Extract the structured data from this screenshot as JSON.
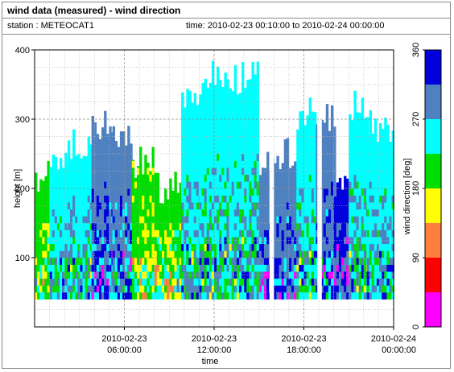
{
  "header": {
    "title": "wind data (measured) - wind direction",
    "station": "station : METEOCAT1",
    "time_range": "time: 2010-02-23 00:10:00 to 2010-02-24 00:00:00"
  },
  "chart_data": {
    "type": "heatmap",
    "xlabel": "time",
    "ylabel": "height [m]",
    "x_ticks": [
      {
        "hour": 6,
        "line1": "2010-02-23",
        "line2": "06:00:00"
      },
      {
        "hour": 12,
        "line1": "2010-02-23",
        "line2": "12:00:00"
      },
      {
        "hour": 18,
        "line1": "2010-02-23",
        "line2": "18:00:00"
      },
      {
        "hour": 24,
        "line1": "2010-02-24",
        "line2": "00:00:00"
      }
    ],
    "xlim_hours": [
      0,
      24
    ],
    "y_ticks": [
      "100",
      "200",
      "300",
      "400"
    ],
    "ylim": [
      0,
      400
    ],
    "grid": true,
    "colorbar": {
      "label": "wind direction [deg]",
      "ticks": [
        "0",
        "90",
        "180",
        "270",
        "360"
      ],
      "range": [
        0,
        360
      ],
      "bands": [
        {
          "from": 0,
          "to": 45,
          "color": "#ff00ff"
        },
        {
          "from": 45,
          "to": 90,
          "color": "#ff0000"
        },
        {
          "from": 90,
          "to": 135,
          "color": "#ff7f3f"
        },
        {
          "from": 135,
          "to": 180,
          "color": "#ffff00"
        },
        {
          "from": 180,
          "to": 225,
          "color": "#00dd00"
        },
        {
          "from": 225,
          "to": 270,
          "color": "#00ffff"
        },
        {
          "from": 270,
          "to": 315,
          "color": "#4f81c0"
        },
        {
          "from": 315,
          "to": 360,
          "color": "#0000dd"
        }
      ]
    },
    "segments": [
      {
        "t0": 0.0,
        "t1": 1.0,
        "top": 215,
        "dir": 195
      },
      {
        "t0": 1.0,
        "t1": 2.2,
        "top": 240,
        "dir": 250
      },
      {
        "t0": 2.2,
        "t1": 3.8,
        "top": 265,
        "dir": 255
      },
      {
        "t0": 3.8,
        "t1": 5.2,
        "top": 290,
        "dir": 300
      },
      {
        "t0": 5.2,
        "t1": 6.5,
        "top": 270,
        "dir": 295
      },
      {
        "t0": 6.5,
        "t1": 8.0,
        "top": 240,
        "dir": 190
      },
      {
        "t0": 8.0,
        "t1": 9.8,
        "top": 200,
        "dir": 200
      },
      {
        "t0": 9.8,
        "t1": 11.0,
        "top": 330,
        "dir": 255
      },
      {
        "t0": 11.0,
        "t1": 13.0,
        "top": 360,
        "dir": 250
      },
      {
        "t0": 13.0,
        "t1": 15.0,
        "top": 360,
        "dir": 250
      },
      {
        "t0": 15.0,
        "t1": 16.5,
        "top": 230,
        "dir": 295
      },
      {
        "t0": 16.5,
        "t1": 17.5,
        "top": 250,
        "dir": 300
      },
      {
        "t0": 17.5,
        "t1": 18.8,
        "top": 310,
        "dir": 250
      },
      {
        "t0": 18.8,
        "t1": 20.0,
        "top": 300,
        "dir": 300
      },
      {
        "t0": 20.0,
        "t1": 21.0,
        "top": 210,
        "dir": 330
      },
      {
        "t0": 21.0,
        "t1": 22.2,
        "top": 320,
        "dir": 250
      },
      {
        "t0": 22.2,
        "t1": 24.0,
        "top": 290,
        "dir": 255
      }
    ],
    "no_data": [
      {
        "t0": 15.7,
        "t1": 16.0,
        "y0": 0,
        "y1": 400
      },
      {
        "t0": 18.9,
        "t1": 19.2,
        "y0": 0,
        "y1": 400
      }
    ]
  }
}
